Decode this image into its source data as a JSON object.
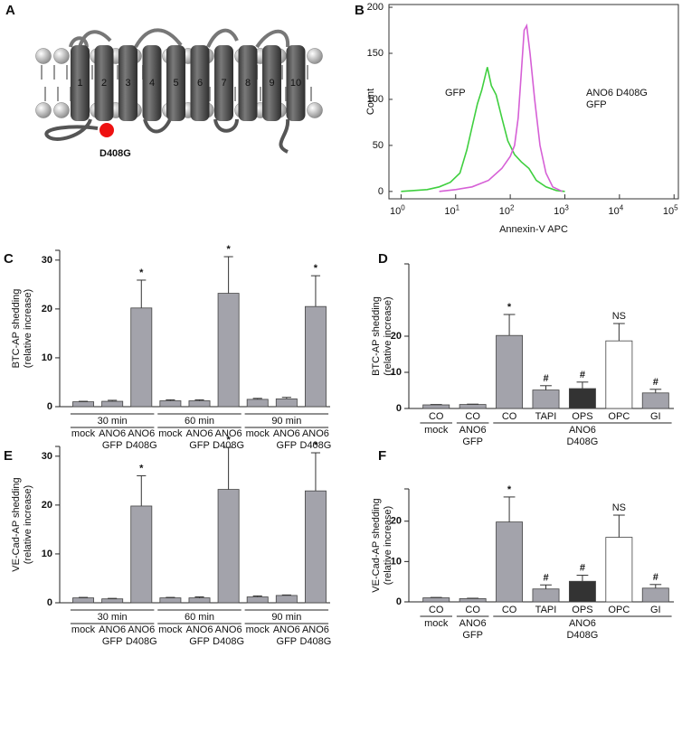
{
  "diagram": {
    "panel_label": "A",
    "helix_labels": [
      "1",
      "2",
      "3",
      "4",
      "5",
      "6",
      "7",
      "8",
      "9",
      "10"
    ],
    "mutation_label": "D408G"
  },
  "chart_data": [
    {
      "type": "line",
      "panel_label": "B",
      "x_label": "Annexin-V APC",
      "y_label": "Count",
      "log_x": true,
      "xlim": [
        0.6,
        120000
      ],
      "ylim": [
        -8,
        203
      ],
      "xticks": [
        {
          "value": 1,
          "label": "10^0"
        },
        {
          "value": 10,
          "label": "10^1"
        },
        {
          "value": 100,
          "label": "10^2"
        },
        {
          "value": 1000,
          "label": "10^3"
        },
        {
          "value": 10000,
          "label": "10^4"
        },
        {
          "value": 100000,
          "label": "10^5"
        }
      ],
      "yticks": [
        0,
        50,
        100,
        150,
        200
      ],
      "series": [
        {
          "name": "GFP",
          "color": "#3fcf3f",
          "x": [
            1,
            3,
            5,
            8,
            12,
            16,
            20,
            25,
            30,
            38,
            45,
            55,
            70,
            90,
            120,
            160,
            220,
            300,
            450,
            700,
            1000
          ],
          "values": [
            0,
            2,
            5,
            10,
            20,
            45,
            70,
            95,
            110,
            135,
            115,
            105,
            80,
            55,
            40,
            32,
            25,
            12,
            5,
            1,
            0
          ]
        },
        {
          "name": "ANO6 D408G\nGFP",
          "color": "#d660d6",
          "x": [
            5,
            10,
            20,
            40,
            70,
            100,
            120,
            140,
            160,
            180,
            200,
            230,
            280,
            350,
            450,
            600,
            900
          ],
          "values": [
            0,
            2,
            5,
            12,
            25,
            38,
            50,
            80,
            130,
            175,
            180,
            150,
            100,
            50,
            20,
            5,
            0
          ]
        }
      ]
    },
    {
      "type": "bar",
      "panel_label": "C",
      "y_label": "BTC-AP shedding\n(relative increase)",
      "ylim": [
        0,
        32
      ],
      "yticks": [
        0,
        10,
        20,
        30
      ],
      "groups": [
        {
          "label": "30 min",
          "categories": [
            "mock",
            "ANO6\nGFP",
            "ANO6\nD408G"
          ]
        },
        {
          "label": "60 min",
          "categories": [
            "mock",
            "ANO6\nGFP",
            "ANO6\nD408G"
          ]
        },
        {
          "label": "90 min",
          "categories": [
            "mock",
            "ANO6\nGFP",
            "ANO6\nD408G"
          ]
        }
      ],
      "values": [
        1.0,
        1.1,
        20.2,
        1.2,
        1.2,
        23.2,
        1.5,
        1.6,
        20.5
      ],
      "errors": [
        0.1,
        0.2,
        5.7,
        0.2,
        0.2,
        7.5,
        0.2,
        0.3,
        6.3
      ],
      "value_annotations": [
        null,
        null,
        "*",
        null,
        null,
        "*",
        null,
        null,
        "*"
      ],
      "colors": [
        "#a3a3ab",
        "#a3a3ab",
        "#a3a3ab",
        "#a3a3ab",
        "#a3a3ab",
        "#a3a3ab",
        "#a3a3ab",
        "#a3a3ab",
        "#a3a3ab"
      ]
    },
    {
      "type": "bar",
      "panel_label": "D",
      "y_label": "BTC-AP shedding\n(relative increase)",
      "ylim": [
        0,
        40
      ],
      "yticks": [
        0,
        10,
        20
      ],
      "groups": [
        {
          "label": "mock",
          "categories": [
            "CO"
          ]
        },
        {
          "label": "ANO6\nGFP",
          "categories": [
            "CO"
          ]
        },
        {
          "label": "ANO6\nD408G",
          "categories": [
            "CO",
            "TAPI",
            "OPS",
            "OPC",
            "GI"
          ]
        }
      ],
      "values": [
        1.0,
        1.1,
        20.2,
        5.1,
        5.5,
        18.7,
        4.3
      ],
      "errors": [
        0.1,
        0.1,
        5.8,
        1.2,
        1.8,
        4.8,
        1.0
      ],
      "value_annotations": [
        null,
        null,
        "*",
        "#",
        "#",
        "NS",
        "#"
      ],
      "colors": [
        "#a3a3ab",
        "#a3a3ab",
        "#a3a3ab",
        "#a3a3ab",
        "#333333",
        "#ffffff",
        "#a3a3ab"
      ]
    },
    {
      "type": "bar",
      "panel_label": "E",
      "y_label": "VE-Cad-AP shedding\n(relative increase)",
      "ylim": [
        0,
        32
      ],
      "yticks": [
        0,
        10,
        20,
        30
      ],
      "groups": [
        {
          "label": "30 min",
          "categories": [
            "mock",
            "ANO6\nGFP",
            "ANO6\nD408G"
          ]
        },
        {
          "label": "60 min",
          "categories": [
            "mock",
            "ANO6\nGFP",
            "ANO6\nD408G"
          ]
        },
        {
          "label": "90 min",
          "categories": [
            "mock",
            "ANO6\nGFP",
            "ANO6\nD408G"
          ]
        }
      ],
      "values": [
        1.0,
        0.8,
        19.8,
        1.0,
        1.0,
        23.2,
        1.2,
        1.5,
        22.9
      ],
      "errors": [
        0.1,
        0.1,
        6.2,
        0.1,
        0.2,
        8.6,
        0.2,
        0.1,
        7.8
      ],
      "value_annotations": [
        null,
        null,
        "*",
        null,
        null,
        "*",
        null,
        null,
        "*"
      ],
      "colors": [
        "#a3a3ab",
        "#a3a3ab",
        "#a3a3ab",
        "#a3a3ab",
        "#a3a3ab",
        "#a3a3ab",
        "#a3a3ab",
        "#a3a3ab",
        "#a3a3ab"
      ]
    },
    {
      "type": "bar",
      "panel_label": "F",
      "y_label": "VE-Cad-AP shedding\n(relative increase)",
      "ylim": [
        0,
        28
      ],
      "yticks": [
        0,
        10,
        20
      ],
      "groups": [
        {
          "label": "mock",
          "categories": [
            "CO"
          ]
        },
        {
          "label": "ANO6\nGFP",
          "categories": [
            "CO"
          ]
        },
        {
          "label": "ANO6\nD408G",
          "categories": [
            "CO",
            "TAPI",
            "OPS",
            "OPC",
            "GI"
          ]
        }
      ],
      "values": [
        1.0,
        0.8,
        19.8,
        3.2,
        5.1,
        16.0,
        3.4
      ],
      "errors": [
        0.1,
        0.1,
        6.2,
        1.0,
        1.5,
        5.5,
        0.9
      ],
      "value_annotations": [
        null,
        null,
        "*",
        "#",
        "#",
        "NS",
        "#"
      ],
      "colors": [
        "#a3a3ab",
        "#a3a3ab",
        "#a3a3ab",
        "#a3a3ab",
        "#333333",
        "#ffffff",
        "#a3a3ab"
      ]
    }
  ]
}
